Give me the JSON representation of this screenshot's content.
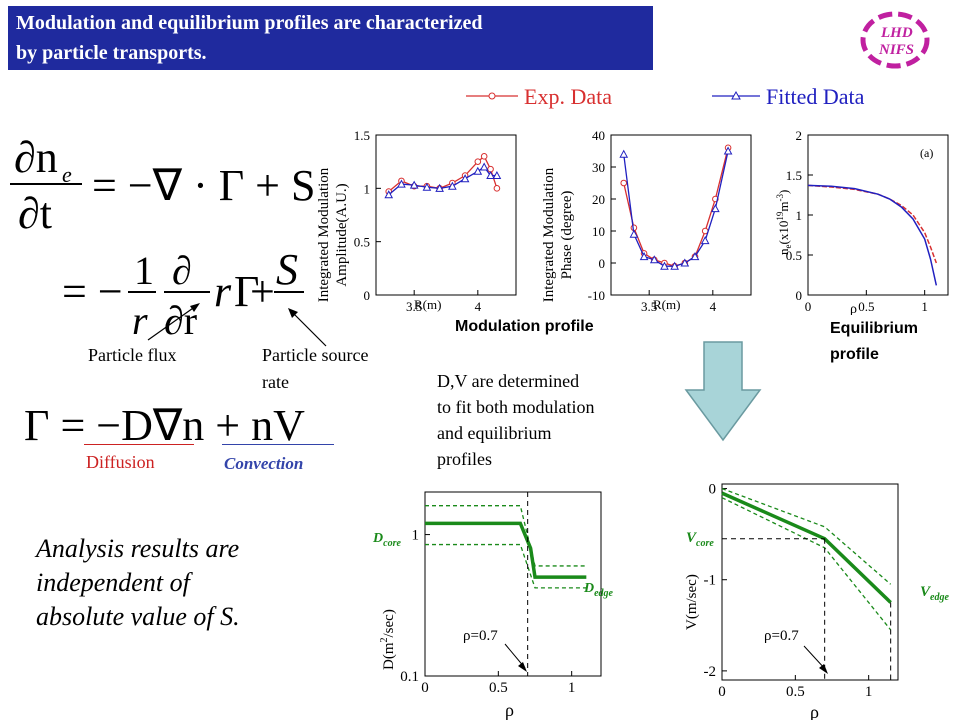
{
  "title": {
    "line1": "Modulation and equilibrium profiles are characterized",
    "line2": "by particle transports."
  },
  "logo": {
    "text1": "LHD",
    "text2": "NIFS"
  },
  "equations": {
    "eq1_lhs_num": "∂n",
    "eq1_lhs_sub": "e",
    "eq1_lhs_den": "∂t",
    "eq1_rhs": "= −∇ · Γ + S",
    "eq2_eq": "= −",
    "eq2_frac1_num": "1",
    "eq2_frac1_den": "r",
    "eq2_frac2_num": "∂",
    "eq2_frac2_den": "∂r",
    "eq2_r": "r",
    "eq2_gamma": "Γ",
    "eq2_plus": "+",
    "eq2_S": "S",
    "eq3": "Γ = −D∇n + nV"
  },
  "labels": {
    "particle_flux": "Particle flux",
    "particle_source_rate_1": "Particle source",
    "particle_source_rate_2": "rate",
    "diffusion": "Diffusion",
    "convection": "Convection",
    "modulation_profile": "Modulation profile",
    "equilibrium_profile_1": "Equilibrium",
    "equilibrium_profile_2": "profile",
    "dv_text": [
      "D,V are determined",
      "to fit both modulation",
      "and equilibrium",
      "profiles"
    ],
    "analysis_text": [
      "Analysis results are",
      "independent of",
      "absolute value of S."
    ]
  },
  "legend": {
    "exp": "Exp. Data",
    "fit": "Fitted Data"
  },
  "colors": {
    "title_bg": "#1f2a9e",
    "exp": "#d83030",
    "fit": "#2020c0",
    "diffusion": "#cc2222",
    "convection": "#3344aa",
    "green": "#1a8a1a",
    "arrow_fill": "#a8d4d8"
  },
  "chart_data": [
    {
      "type": "line",
      "ylabel": [
        "Integrated Modulation",
        "Amplitude(A.U.)"
      ],
      "xlabel": "R(m)",
      "xticks": [
        "3.5",
        "4"
      ],
      "yticks": [
        "0",
        "0.5",
        "1",
        "1.5"
      ],
      "xlim": [
        3.2,
        4.3
      ],
      "ylim": [
        0,
        1.5
      ],
      "series": [
        {
          "name": "Exp. Data",
          "x": [
            3.3,
            3.4,
            3.5,
            3.6,
            3.7,
            3.8,
            3.9,
            4.0,
            4.05,
            4.1,
            4.15
          ],
          "y": [
            0.97,
            1.07,
            1.02,
            1.02,
            1.0,
            1.05,
            1.12,
            1.25,
            1.3,
            1.18,
            1.0
          ]
        },
        {
          "name": "Fitted Data",
          "x": [
            3.3,
            3.4,
            3.5,
            3.6,
            3.7,
            3.8,
            3.9,
            4.0,
            4.05,
            4.1,
            4.15
          ],
          "y": [
            0.94,
            1.04,
            1.03,
            1.01,
            1.0,
            1.02,
            1.09,
            1.16,
            1.2,
            1.12,
            1.12
          ]
        }
      ]
    },
    {
      "type": "line",
      "ylabel": [
        "Integrated Modulation",
        "Phase (degree)"
      ],
      "xlabel": "R(m)",
      "xticks": [
        "3.5",
        "4"
      ],
      "yticks": [
        "-10",
        "0",
        "10",
        "20",
        "30",
        "40"
      ],
      "xlim": [
        3.2,
        4.3
      ],
      "ylim": [
        -10,
        40
      ],
      "series": [
        {
          "name": "Exp. Data",
          "x": [
            3.3,
            3.38,
            3.46,
            3.54,
            3.62,
            3.7,
            3.78,
            3.86,
            3.94,
            4.02,
            4.12
          ],
          "y": [
            25,
            11,
            3,
            1,
            0,
            -1,
            0,
            2,
            10,
            20,
            36
          ]
        },
        {
          "name": "Fitted Data",
          "x": [
            3.3,
            3.38,
            3.46,
            3.54,
            3.62,
            3.7,
            3.78,
            3.86,
            3.94,
            4.02,
            4.12
          ],
          "y": [
            34,
            9,
            2,
            1,
            -1,
            -1,
            0,
            2,
            7,
            17,
            35
          ]
        }
      ]
    },
    {
      "type": "line",
      "ylabel": [
        "n (x10^19 m^-3)"
      ],
      "xlabel": "ρ",
      "xticks": [
        "0",
        "0.5",
        "1"
      ],
      "yticks": [
        "0",
        "0.5",
        "1",
        "1.5",
        "2"
      ],
      "xlim": [
        0,
        1.2
      ],
      "ylim": [
        0,
        2
      ],
      "annotation": "(a)",
      "series": [
        {
          "name": "Exp. Data",
          "x": [
            0,
            0.2,
            0.4,
            0.6,
            0.7,
            0.8,
            0.9,
            1.0,
            1.05,
            1.1
          ],
          "y": [
            1.37,
            1.35,
            1.32,
            1.26,
            1.2,
            1.12,
            1.0,
            0.78,
            0.6,
            0.4
          ]
        },
        {
          "name": "Fitted Data",
          "x": [
            0,
            0.2,
            0.4,
            0.6,
            0.7,
            0.8,
            0.9,
            1.0,
            1.05,
            1.1
          ],
          "y": [
            1.37,
            1.36,
            1.33,
            1.26,
            1.2,
            1.1,
            0.95,
            0.7,
            0.45,
            0.12
          ]
        }
      ]
    },
    {
      "type": "line",
      "ylabel": "D(m^2/sec)",
      "xlabel": "ρ",
      "xticks": [
        "0",
        "0.5",
        "1"
      ],
      "yticks": [
        "0.1",
        "1"
      ],
      "xlim": [
        0,
        1.2
      ],
      "ylim": [
        0.1,
        2
      ],
      "log_y": true,
      "annotations": [
        "D_core",
        "D_edge",
        "ρ=0.7"
      ],
      "series": [
        {
          "name": "D",
          "x": [
            0,
            0.65,
            0.72,
            0.75,
            1.1
          ],
          "y": [
            1.2,
            1.2,
            0.8,
            0.5,
            0.5
          ]
        },
        {
          "name": "D upper",
          "x": [
            0,
            0.65,
            0.75,
            1.1
          ],
          "y": [
            1.6,
            1.6,
            0.6,
            0.6
          ]
        },
        {
          "name": "D lower",
          "x": [
            0,
            0.65,
            0.75,
            1.1
          ],
          "y": [
            0.85,
            0.85,
            0.42,
            0.42
          ]
        }
      ]
    },
    {
      "type": "line",
      "ylabel": "V(m/sec)",
      "xlabel": "ρ",
      "xticks": [
        "0",
        "0.5",
        "1"
      ],
      "yticks": [
        "-2",
        "-1",
        "0"
      ],
      "xlim": [
        0,
        1.2
      ],
      "ylim": [
        -2.1,
        0.05
      ],
      "annotations": [
        "V_core",
        "V_edge",
        "ρ=0.7"
      ],
      "series": [
        {
          "name": "V",
          "x": [
            0,
            0.7,
            1.15
          ],
          "y": [
            -0.05,
            -0.55,
            -1.25
          ]
        },
        {
          "name": "V upper",
          "x": [
            0,
            0.7,
            1.15
          ],
          "y": [
            0,
            -0.42,
            -1.05
          ]
        },
        {
          "name": "V lower",
          "x": [
            0,
            0.7,
            1.15
          ],
          "y": [
            -0.1,
            -0.65,
            -1.55
          ]
        }
      ]
    }
  ]
}
